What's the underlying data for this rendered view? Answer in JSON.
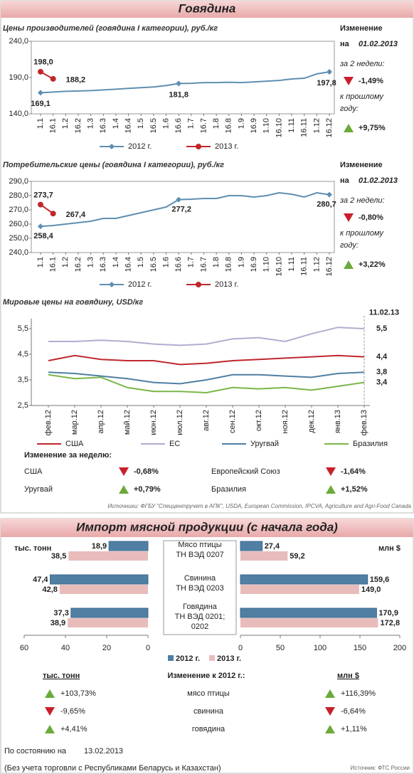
{
  "header": "Говядина",
  "chart_data": [
    {
      "type": "line",
      "title": "Цены производителей (говядина I категории), руб./кг",
      "categories": [
        "1.1",
        "16.1",
        "1.2",
        "16.2",
        "1.3",
        "16.3",
        "1.4",
        "16.4",
        "1.5",
        "16.5",
        "1.6",
        "16.6",
        "1.7",
        "16.7",
        "1.8",
        "16.8",
        "1.9",
        "16.9",
        "1.10",
        "16.10",
        "1.11",
        "16.11",
        "1.12",
        "16.12"
      ],
      "ylim": [
        140,
        240
      ],
      "yticks": [
        {
          "value": 140,
          "label": "140,0"
        },
        {
          "value": 190,
          "label": "190,0"
        },
        {
          "value": 240,
          "label": "240,0"
        }
      ],
      "series": [
        {
          "name": "2012 г.",
          "color": "#5f8fb0",
          "marker": "diamond",
          "values": [
            169.1,
            170,
            171,
            171.5,
            172,
            173,
            174,
            175,
            176,
            177,
            179,
            181.8,
            182,
            183,
            183,
            183.5,
            183,
            184,
            185,
            186,
            188,
            189,
            195,
            197.8
          ],
          "value_labels": [
            "169,1",
            null,
            null,
            null,
            null,
            null,
            null,
            null,
            null,
            null,
            null,
            "181,8",
            null,
            null,
            null,
            null,
            null,
            null,
            null,
            null,
            null,
            null,
            null,
            "197,8"
          ]
        },
        {
          "name": "2013 г.",
          "color": "#c0272d",
          "marker": "circle",
          "values": [
            198.0,
            188.2,
            null,
            null,
            null,
            null,
            null,
            null,
            null,
            null,
            null,
            null,
            null,
            null,
            null,
            null,
            null,
            null,
            null,
            null,
            null,
            null,
            null,
            null
          ],
          "value_labels": [
            "198,0",
            "188,2",
            null,
            null,
            null,
            null,
            null,
            null,
            null,
            null,
            null,
            null,
            null,
            null,
            null,
            null,
            null,
            null,
            null,
            null,
            null,
            null,
            null,
            null
          ]
        }
      ]
    },
    {
      "type": "line",
      "title": "Потребительские цены (говядина I категории), руб./кг",
      "categories": [
        "1.1",
        "16.1",
        "1.2",
        "16.2",
        "1.3",
        "16.3",
        "1.4",
        "16.4",
        "1.5",
        "16.5",
        "1.6",
        "16.6",
        "1.7",
        "16.7",
        "1.8",
        "16.8",
        "1.9",
        "16.9",
        "1.10",
        "16.10",
        "1.11",
        "16.11",
        "1.12",
        "16.12"
      ],
      "ylim": [
        240,
        290
      ],
      "yticks": [
        {
          "value": 240,
          "label": "240,0"
        },
        {
          "value": 250,
          "label": "250,0"
        },
        {
          "value": 260,
          "label": "260,0"
        },
        {
          "value": 270,
          "label": "270,0"
        },
        {
          "value": 280,
          "label": "280,0"
        },
        {
          "value": 290,
          "label": "290,0"
        }
      ],
      "series": [
        {
          "name": "2012 г.",
          "color": "#5f8fb0",
          "marker": "diamond",
          "values": [
            258.4,
            259,
            260,
            261,
            262,
            264,
            264,
            266,
            268,
            270,
            272,
            277.2,
            277.5,
            278,
            278,
            280,
            280,
            279,
            280,
            282,
            281,
            279,
            282,
            280.7
          ],
          "value_labels": [
            "258,4",
            null,
            null,
            null,
            null,
            null,
            null,
            null,
            null,
            null,
            null,
            "277,2",
            null,
            null,
            null,
            null,
            null,
            null,
            null,
            null,
            null,
            null,
            null,
            "280,7"
          ]
        },
        {
          "name": "2013 г.",
          "color": "#c0272d",
          "marker": "circle",
          "values": [
            273.7,
            267.4,
            null,
            null,
            null,
            null,
            null,
            null,
            null,
            null,
            null,
            null,
            null,
            null,
            null,
            null,
            null,
            null,
            null,
            null,
            null,
            null,
            null,
            null
          ],
          "value_labels": [
            "273,7",
            "267,4",
            null,
            null,
            null,
            null,
            null,
            null,
            null,
            null,
            null,
            null,
            null,
            null,
            null,
            null,
            null,
            null,
            null,
            null,
            null,
            null,
            null,
            null
          ]
        }
      ]
    },
    {
      "type": "line",
      "title": "Мировые цены на говядину, USD/кг",
      "annotation": "11.02.13",
      "categories": [
        "фев.12",
        "мар.12",
        "апр.12",
        "май.12",
        "июн.12",
        "июл.12",
        "авг.12",
        "сен.12",
        "окт.12",
        "ноя.12",
        "дек.12",
        "янв.13",
        "фев.13"
      ],
      "ylim": [
        2.5,
        5.9
      ],
      "yticks": [
        {
          "value": 2.5,
          "label": "2,5"
        },
        {
          "value": 3.5,
          "label": "3,5"
        },
        {
          "value": 4.5,
          "label": "4,5"
        },
        {
          "value": 5.5,
          "label": "5,5"
        }
      ],
      "series": [
        {
          "name": "США",
          "color": "#c0272d",
          "values": [
            4.25,
            4.45,
            4.3,
            4.25,
            4.25,
            4.1,
            4.15,
            4.25,
            4.3,
            4.35,
            4.4,
            4.45,
            4.4
          ],
          "value_labels": [
            null,
            null,
            null,
            null,
            null,
            null,
            null,
            null,
            null,
            null,
            null,
            null,
            "4,4"
          ]
        },
        {
          "name": "ЕС",
          "color": "#b3acd0",
          "values": [
            5.0,
            5.0,
            5.05,
            5.0,
            4.9,
            4.85,
            4.9,
            5.1,
            5.15,
            5.0,
            5.3,
            5.55,
            5.5
          ],
          "value_labels": [
            null,
            null,
            null,
            null,
            null,
            null,
            null,
            null,
            null,
            null,
            null,
            null,
            "5,5"
          ]
        },
        {
          "name": "Уругвай",
          "color": "#4f7fa3",
          "values": [
            3.8,
            3.75,
            3.65,
            3.55,
            3.4,
            3.35,
            3.5,
            3.7,
            3.7,
            3.65,
            3.6,
            3.75,
            3.8
          ],
          "value_labels": [
            null,
            null,
            null,
            null,
            null,
            null,
            null,
            null,
            null,
            null,
            null,
            null,
            "3,8"
          ]
        },
        {
          "name": "Бразилия",
          "color": "#7ab648",
          "values": [
            3.7,
            3.55,
            3.6,
            3.2,
            3.05,
            3.05,
            3.0,
            3.2,
            3.15,
            3.2,
            3.1,
            3.25,
            3.4
          ],
          "value_labels": [
            null,
            null,
            null,
            null,
            null,
            null,
            null,
            null,
            null,
            null,
            null,
            null,
            "3,4"
          ]
        }
      ]
    },
    {
      "type": "bar",
      "title": "Импорт мясной продукции (с начала года)",
      "categories": [
        [
          "Мясо птицы",
          "ТН ВЭД 0207"
        ],
        [
          "Свинина",
          "ТН ВЭД 0203"
        ],
        [
          "Говядина",
          "ТН ВЭД 0201;",
          "0202"
        ]
      ],
      "left": {
        "unit": "тыс. тонн",
        "xlim": [
          60,
          0
        ],
        "xticks": [
          60,
          40,
          20,
          0
        ],
        "series": [
          {
            "name": "2012 г.",
            "color": "#4f7fa3",
            "values": [
              18.9,
              47.4,
              37.3
            ],
            "value_labels": [
              "18,9",
              "47,4",
              "37,3"
            ]
          },
          {
            "name": "2013 г.",
            "color": "#e9bcbc",
            "values": [
              38.5,
              42.8,
              38.9
            ],
            "value_labels": [
              "38,5",
              "42,8",
              "38,9"
            ]
          }
        ]
      },
      "right": {
        "unit": "млн $",
        "xlim": [
          0,
          200
        ],
        "xticks": [
          0,
          50,
          100,
          150,
          200
        ],
        "series": [
          {
            "color": "#4f7fa3",
            "values": [
              27.4,
              159.6,
              170.9
            ],
            "value_labels": [
              "27,4",
              "159,6",
              "170,9"
            ]
          },
          {
            "color": "#e9bcbc",
            "values": [
              59.2,
              149.0,
              172.8
            ],
            "value_labels": [
              "59,2",
              "149,0",
              "172,8"
            ]
          }
        ]
      }
    }
  ],
  "panels": [
    {
      "heading": "Изменение",
      "on": "на",
      "date": "01.02.2013",
      "period1": "за 2 недели:",
      "change1": {
        "value": "-1,49%",
        "trend": "down"
      },
      "period2": [
        "к прошлому",
        "году:"
      ],
      "change2": {
        "value": "+9,75%",
        "trend": "up"
      }
    },
    {
      "heading": "Изменение",
      "on": "на",
      "date": "01.02.2013",
      "period1": "за 2 недели:",
      "change1": {
        "value": "-0,80%",
        "trend": "down"
      },
      "period2": [
        "к прошлому",
        "году:"
      ],
      "change2": {
        "value": "+3,22%",
        "trend": "up"
      }
    }
  ],
  "weekly": {
    "title": "Изменение за неделю:",
    "items": [
      {
        "name": "США",
        "value": "-0,68%",
        "trend": "down"
      },
      {
        "name": "Европейский Союз",
        "value": "-1,64%",
        "trend": "down"
      },
      {
        "name": "Уругвай",
        "value": "+0,79%",
        "trend": "up"
      },
      {
        "name": "Бразилия",
        "value": "+1,52%",
        "trend": "up"
      }
    ]
  },
  "sources": "Источники: ФГБУ \"Спеццентручет в АПК\", USDA, European Commission, IPCVA, Agriculture and Agri-Food Canada",
  "import_changes": {
    "left_unit": "тыс. тонн",
    "title": "Изменение к 2012 г.:",
    "right_unit": "млн $",
    "rows": [
      {
        "left": "+103,73%",
        "left_trend": "up",
        "name": "мясо птицы",
        "right": "+116,39%",
        "right_trend": "up"
      },
      {
        "left": "-9,65%",
        "left_trend": "down",
        "name": "свинина",
        "right": "-6,64%",
        "right_trend": "down"
      },
      {
        "left": "+4,41%",
        "left_trend": "up",
        "name": "говядина",
        "right": "+1,11%",
        "right_trend": "up"
      }
    ]
  },
  "footer": {
    "status_label": "По состоянию на",
    "status_date": "13.02.2013",
    "note": "(Без учета торговли с Республиками Беларусь и Казахстан)",
    "source": "Источник: ФТС России"
  }
}
